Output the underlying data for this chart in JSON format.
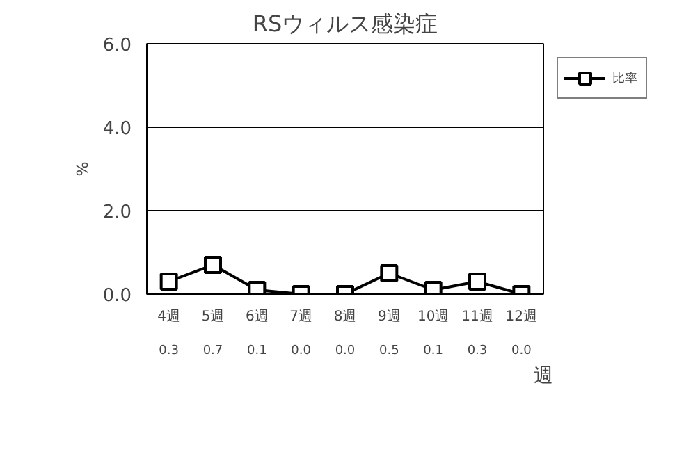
{
  "chart_data": {
    "type": "line",
    "title": "RSウィルス感染症",
    "xlabel": "週",
    "ylabel": "%",
    "categories": [
      "4週",
      "5週",
      "6週",
      "7週",
      "8週",
      "9週",
      "10週",
      "11週",
      "12週"
    ],
    "series": [
      {
        "name": "比率",
        "color": "#000000",
        "values": [
          0.3,
          0.7,
          0.1,
          0.0,
          0.0,
          0.5,
          0.1,
          0.3,
          0.0
        ],
        "value_labels": [
          "0.3",
          "0.7",
          "0.1",
          "0.0",
          "0.0",
          "0.5",
          "0.1",
          "0.3",
          "0.0"
        ]
      }
    ],
    "ylim": [
      0,
      6
    ],
    "yticks": [
      {
        "value": 0,
        "label": "0.0"
      },
      {
        "value": 2,
        "label": "2.0"
      },
      {
        "value": 4,
        "label": "4.0"
      },
      {
        "value": 6,
        "label": "6.0"
      }
    ],
    "grid": "y",
    "legend": "top right",
    "marker": "square",
    "line_style": "solid"
  }
}
